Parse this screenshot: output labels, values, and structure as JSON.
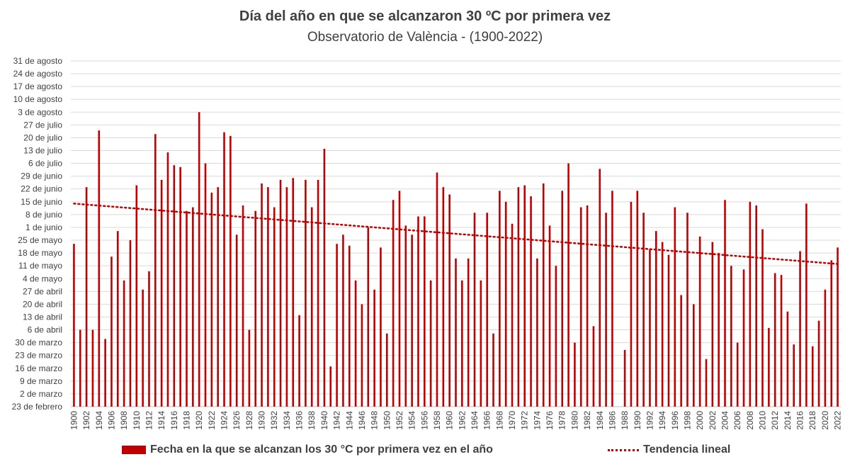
{
  "chart_data": {
    "type": "bar",
    "title": "Día del año en que se alcanzaron 30 ºC por primera vez",
    "subtitle": "Observatorio de València - (1900-2022)",
    "xlabel": "",
    "ylabel": "",
    "y_unit": "day of year",
    "ylim": [
      54,
      243
    ],
    "grid": true,
    "legend_position": "bottom",
    "yticks": [
      {
        "day": 54,
        "label": "23 de febrero"
      },
      {
        "day": 61,
        "label": "2 de marzo"
      },
      {
        "day": 68,
        "label": "9 de marzo"
      },
      {
        "day": 75,
        "label": "16 de marzo"
      },
      {
        "day": 82,
        "label": "23 de marzo"
      },
      {
        "day": 89,
        "label": "30 de marzo"
      },
      {
        "day": 96,
        "label": "6 de abril"
      },
      {
        "day": 103,
        "label": "13 de abril"
      },
      {
        "day": 110,
        "label": "20 de abril"
      },
      {
        "day": 117,
        "label": "27 de abril"
      },
      {
        "day": 124,
        "label": "4 de mayo"
      },
      {
        "day": 131,
        "label": "11 de mayo"
      },
      {
        "day": 138,
        "label": "18 de mayo"
      },
      {
        "day": 145,
        "label": "25 de mayo"
      },
      {
        "day": 152,
        "label": "1 de junio"
      },
      {
        "day": 159,
        "label": "8 de junio"
      },
      {
        "day": 166,
        "label": "15 de junio"
      },
      {
        "day": 173,
        "label": "22 de junio"
      },
      {
        "day": 180,
        "label": "29 de junio"
      },
      {
        "day": 187,
        "label": "6 de julio"
      },
      {
        "day": 194,
        "label": "13 de julio"
      },
      {
        "day": 201,
        "label": "20 de julio"
      },
      {
        "day": 208,
        "label": "27 de julio"
      },
      {
        "day": 215,
        "label": "3 de agosto"
      },
      {
        "day": 222,
        "label": "10 de agosto"
      },
      {
        "day": 229,
        "label": "17 de agosto"
      },
      {
        "day": 236,
        "label": "24 de agosto"
      },
      {
        "day": 243,
        "label": "31 de agosto"
      }
    ],
    "x_tick_labels": [
      "1900",
      "1902",
      "1904",
      "1906",
      "1908",
      "1910",
      "1912",
      "1914",
      "1916",
      "1918",
      "1920",
      "1922",
      "1924",
      "1926",
      "1928",
      "1930",
      "1932",
      "1934",
      "1936",
      "1938",
      "1940",
      "1942",
      "1944",
      "1946",
      "1948",
      "1950",
      "1952",
      "1954",
      "1956",
      "1958",
      "1960",
      "1962",
      "1964",
      "1966",
      "1968",
      "1970",
      "1972",
      "1974",
      "1976",
      "1978",
      "1980",
      "1982",
      "1984",
      "1986",
      "1988",
      "1990",
      "1992",
      "1994",
      "1996",
      "1998",
      "2000",
      "2002",
      "2004",
      "2006",
      "2008",
      "2010",
      "2012",
      "2014",
      "2016",
      "2018",
      "2020",
      "2022"
    ],
    "series": [
      {
        "name": "Fecha en la que se alcanzan los 30 °C por primera vez en el año",
        "type": "bar",
        "color": "#c00000",
        "x": [
          1900,
          1901,
          1902,
          1903,
          1904,
          1905,
          1906,
          1907,
          1908,
          1909,
          1910,
          1911,
          1912,
          1913,
          1914,
          1915,
          1916,
          1917,
          1918,
          1919,
          1920,
          1921,
          1922,
          1923,
          1924,
          1925,
          1926,
          1927,
          1928,
          1929,
          1930,
          1931,
          1932,
          1933,
          1934,
          1935,
          1936,
          1937,
          1938,
          1939,
          1940,
          1941,
          1942,
          1943,
          1944,
          1945,
          1946,
          1947,
          1948,
          1949,
          1950,
          1951,
          1952,
          1953,
          1954,
          1955,
          1956,
          1957,
          1958,
          1959,
          1960,
          1961,
          1962,
          1963,
          1964,
          1965,
          1966,
          1967,
          1968,
          1969,
          1970,
          1971,
          1972,
          1973,
          1974,
          1975,
          1976,
          1977,
          1978,
          1979,
          1980,
          1981,
          1982,
          1983,
          1984,
          1985,
          1986,
          1987,
          1988,
          1989,
          1990,
          1991,
          1992,
          1993,
          1994,
          1995,
          1996,
          1997,
          1998,
          1999,
          2000,
          2001,
          2002,
          2003,
          2004,
          2005,
          2006,
          2007,
          2008,
          2009,
          2010,
          2011,
          2012,
          2013,
          2014,
          2015,
          2016,
          2017,
          2018,
          2019,
          2020,
          2021,
          2022
        ],
        "values": [
          143,
          96,
          174,
          96,
          205,
          91,
          136,
          150,
          123,
          145,
          175,
          118,
          128,
          203,
          178,
          193,
          186,
          185,
          161,
          163,
          215,
          187,
          171,
          174,
          204,
          202,
          148,
          164,
          96,
          161,
          176,
          174,
          163,
          178,
          174,
          179,
          104,
          178,
          163,
          178,
          195,
          76,
          143,
          148,
          142,
          123,
          110,
          152,
          118,
          141,
          94,
          167,
          172,
          153,
          148,
          158,
          158,
          123,
          182,
          174,
          170,
          135,
          123,
          135,
          160,
          123,
          160,
          94,
          172,
          166,
          154,
          174,
          175,
          169,
          135,
          176,
          153,
          131,
          172,
          187,
          89,
          163,
          164,
          98,
          184,
          160,
          172,
          54,
          85,
          166,
          172,
          160,
          140,
          150,
          144,
          137,
          163,
          115,
          160,
          110,
          147,
          80,
          144,
          138,
          167,
          131,
          89,
          129,
          166,
          164,
          151,
          97,
          127,
          126,
          106,
          88,
          139,
          165,
          87,
          101,
          118,
          134,
          141
        ]
      },
      {
        "name": "Tendencia lineal",
        "type": "trendline",
        "color": "#c00000",
        "x": [
          1900,
          2022
        ],
        "values": [
          165,
          132
        ]
      }
    ]
  }
}
